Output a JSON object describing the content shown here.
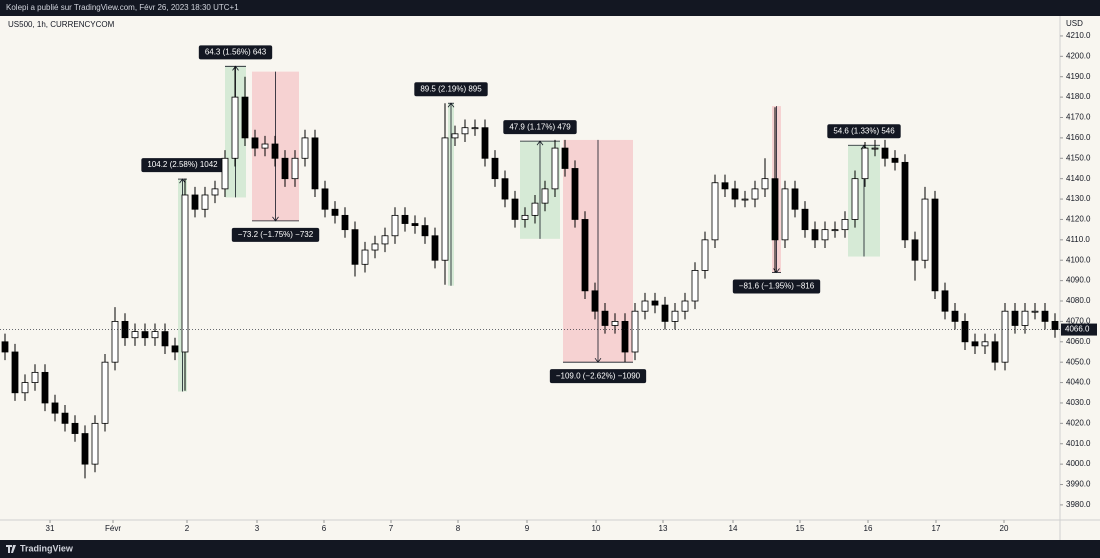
{
  "header": "Kolepi a publié sur TradingView.com, Févr 26, 2023 18:30 UTC+1",
  "footer": "TradingView",
  "chart_data": {
    "type": "candlestick",
    "symbol": "US500, 1h, CURRENCYCOM",
    "y_unit": "USD",
    "xlim": [
      0,
      106
    ],
    "ylim": [
      3972.6,
      4218.8
    ],
    "xticks": [
      {
        "value": 5,
        "label": "31"
      },
      {
        "value": 11.3,
        "label": "Févr"
      },
      {
        "value": 18.7,
        "label": "2"
      },
      {
        "value": 25.7,
        "label": "3"
      },
      {
        "value": 32.4,
        "label": "6"
      },
      {
        "value": 39.1,
        "label": "7"
      },
      {
        "value": 45.8,
        "label": "8"
      },
      {
        "value": 52.7,
        "label": "9"
      },
      {
        "value": 59.6,
        "label": "10"
      },
      {
        "value": 66.3,
        "label": "13"
      },
      {
        "value": 73.3,
        "label": "14"
      },
      {
        "value": 80,
        "label": "15"
      },
      {
        "value": 86.8,
        "label": "16"
      },
      {
        "value": 93.6,
        "label": "17"
      },
      {
        "value": 100.4,
        "label": "20"
      }
    ],
    "yticks": [
      {
        "value": 3980,
        "label": "3980.0"
      },
      {
        "value": 3990,
        "label": "3990.0"
      },
      {
        "value": 4000,
        "label": "4000.0"
      },
      {
        "value": 4010,
        "label": "4010.0"
      },
      {
        "value": 4020,
        "label": "4020.0"
      },
      {
        "value": 4030,
        "label": "4030.0"
      },
      {
        "value": 4040,
        "label": "4040.0"
      },
      {
        "value": 4050,
        "label": "4050.0"
      },
      {
        "value": 4060,
        "label": "4060.0"
      },
      {
        "value": 4070,
        "label": "4070.0"
      },
      {
        "value": 4080,
        "label": "4080.0"
      },
      {
        "value": 4090,
        "label": "4090.0"
      },
      {
        "value": 4100,
        "label": "4100.0"
      },
      {
        "value": 4110,
        "label": "4110.0"
      },
      {
        "value": 4120,
        "label": "4120.0"
      },
      {
        "value": 4130,
        "label": "4130.0"
      },
      {
        "value": 4140,
        "label": "4140.0"
      },
      {
        "value": 4150,
        "label": "4150.0"
      },
      {
        "value": 4160,
        "label": "4160.0"
      },
      {
        "value": 4170,
        "label": "4170.0"
      },
      {
        "value": 4180,
        "label": "4180.0"
      },
      {
        "value": 4190,
        "label": "4190.0"
      },
      {
        "value": 4200,
        "label": "4200.0"
      },
      {
        "value": 4210,
        "label": "4210.0"
      }
    ],
    "up_color": "#ffffff",
    "down_color": "#000000",
    "open": [
      4060,
      4055,
      4035,
      4040,
      4045,
      4030,
      4025,
      4020,
      4015,
      4000,
      4020,
      4050,
      4070,
      4062,
      4065,
      4062,
      4065,
      4058,
      4055,
      4132,
      4125,
      4132,
      4135,
      4150,
      4180,
      4160,
      4155,
      4157,
      4150,
      4140,
      4150,
      4160,
      4135,
      4125,
      4122,
      4115,
      4098,
      4105,
      4108,
      4112,
      4122,
      4118,
      4117,
      4112,
      4100,
      4160,
      4162,
      4165,
      4165,
      4150,
      4140,
      4130,
      4120,
      4122,
      4128,
      4135,
      4155,
      4145,
      4120,
      4085,
      4075,
      4068,
      4070,
      4055,
      4075,
      4080,
      4078,
      4070,
      4075,
      4080,
      4095,
      4110,
      4138,
      4135,
      4130,
      4130,
      4135,
      4140,
      4110,
      4135,
      4125,
      4115,
      4110,
      4115,
      4115,
      4120,
      4140,
      4155,
      4155,
      4150,
      4148,
      4110,
      4100,
      4130,
      4085,
      4075,
      4070,
      4060,
      4058,
      4060,
      4050,
      4075,
      4068,
      4075,
      4075,
      4070
    ],
    "high": [
      4064,
      4059,
      4044,
      4049,
      4049,
      4034,
      4029,
      4024,
      4019,
      4024,
      4054,
      4077,
      4074,
      4069,
      4069,
      4069,
      4069,
      4062,
      4140,
      4136,
      4136,
      4139,
      4154,
      4195,
      4190,
      4164,
      4161,
      4161,
      4154,
      4154,
      4164,
      4164,
      4139,
      4129,
      4126,
      4119,
      4109,
      4112,
      4116,
      4126,
      4126,
      4122,
      4121,
      4116,
      4177,
      4166,
      4169,
      4169,
      4169,
      4154,
      4144,
      4134,
      4126,
      4132,
      4139,
      4159,
      4159,
      4149,
      4124,
      4089,
      4079,
      4074,
      4074,
      4079,
      4084,
      4084,
      4082,
      4079,
      4084,
      4099,
      4114,
      4142,
      4142,
      4139,
      4134,
      4139,
      4150,
      4175,
      4139,
      4139,
      4129,
      4119,
      4119,
      4119,
      4124,
      4144,
      4158,
      4159,
      4159,
      4154,
      4152,
      4114,
      4136,
      4134,
      4089,
      4079,
      4074,
      4064,
      4064,
      4064,
      4079,
      4079,
      4079,
      4079,
      4079,
      4074
    ],
    "low": [
      4051,
      4031,
      4031,
      4036,
      4026,
      4021,
      4016,
      4011,
      3993,
      3996,
      4016,
      4046,
      4058,
      4058,
      4058,
      4058,
      4054,
      4051,
      4036,
      4121,
      4121,
      4128,
      4131,
      4146,
      4156,
      4151,
      4151,
      4146,
      4136,
      4136,
      4146,
      4131,
      4121,
      4118,
      4111,
      4092,
      4094,
      4101,
      4104,
      4108,
      4114,
      4113,
      4108,
      4096,
      4088,
      4156,
      4158,
      4161,
      4146,
      4136,
      4126,
      4116,
      4116,
      4118,
      4124,
      4131,
      4141,
      4116,
      4081,
      4071,
      4064,
      4064,
      4050,
      4051,
      4071,
      4074,
      4066,
      4066,
      4071,
      4076,
      4091,
      4106,
      4131,
      4126,
      4126,
      4126,
      4131,
      4094,
      4106,
      4121,
      4111,
      4106,
      4106,
      4111,
      4111,
      4116,
      4136,
      4151,
      4146,
      4144,
      4106,
      4090,
      4096,
      4081,
      4071,
      4066,
      4056,
      4054,
      4054,
      4046,
      4046,
      4064,
      4064,
      4071,
      4066,
      4062
    ],
    "close": [
      4055,
      4035,
      4040,
      4045,
      4030,
      4025,
      4020,
      4015,
      4000,
      4020,
      4050,
      4070,
      4062,
      4065,
      4062,
      4065,
      4058,
      4055,
      4132,
      4125,
      4132,
      4135,
      4150,
      4180,
      4160,
      4155,
      4157,
      4150,
      4140,
      4150,
      4160,
      4135,
      4125,
      4122,
      4115,
      4098,
      4105,
      4108,
      4112,
      4122,
      4118,
      4117,
      4112,
      4100,
      4160,
      4162,
      4165,
      4165,
      4150,
      4140,
      4130,
      4120,
      4122,
      4128,
      4135,
      4155,
      4145,
      4120,
      4085,
      4075,
      4068,
      4070,
      4055,
      4075,
      4080,
      4078,
      4070,
      4075,
      4080,
      4095,
      4110,
      4138,
      4135,
      4130,
      4130,
      4135,
      4140,
      4110,
      4135,
      4125,
      4115,
      4110,
      4115,
      4115,
      4120,
      4140,
      4155,
      4155,
      4150,
      4148,
      4110,
      4100,
      4130,
      4085,
      4075,
      4070,
      4060,
      4058,
      4060,
      4050,
      4075,
      4068,
      4075,
      4075,
      4070,
      4066
    ],
    "last": {
      "value": 4066,
      "label": "4066.0"
    },
    "measures": [
      {
        "label": "104.2 (2.58%) 1042",
        "start": 17.8,
        "end": 18.7,
        "from": 4035.6,
        "to": 4139.8,
        "color": "#d6ead6"
      },
      {
        "label": "64.3 (1.56%) 643",
        "start": 22.5,
        "end": 24.6,
        "from": 4130.8,
        "to": 4195.1,
        "color": "#d6ead6"
      },
      {
        "label": "−73.2 (−1.75%) −732",
        "start": 25.2,
        "end": 29.9,
        "from": 4192.5,
        "to": 4119.3,
        "color": "#f6d2d2"
      },
      {
        "label": "89.5 (2.19%) 895",
        "start": 44.8,
        "end": 45.4,
        "from": 4087.5,
        "to": 4177.0,
        "color": "#d6ead6"
      },
      {
        "label": "47.9 (1.17%) 479",
        "start": 52,
        "end": 56,
        "from": 4110.5,
        "to": 4158.4,
        "color": "#d6ead6"
      },
      {
        "label": "−109.0 (−2.62%) −1090",
        "start": 56.3,
        "end": 63.3,
        "from": 4159.0,
        "to": 4050.0,
        "color": "#f6d2d2"
      },
      {
        "label": "−81.6 (−1.95%) −816",
        "start": 77.2,
        "end": 78.1,
        "from": 4175.6,
        "to": 4094.0,
        "color": "#f6d2d2"
      },
      {
        "label": "54.6 (1.33%) 546",
        "start": 84.8,
        "end": 88,
        "from": 4101.8,
        "to": 4156.4,
        "color": "#d6ead6"
      }
    ]
  }
}
